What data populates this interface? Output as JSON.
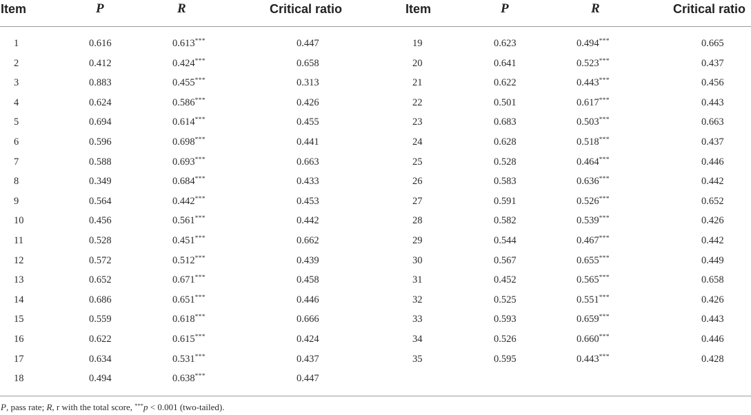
{
  "headers": {
    "left": {
      "item": "Item",
      "p": "P",
      "r": "R",
      "cr": "Critical ratio"
    },
    "right": {
      "item": "Item",
      "p": "P",
      "r": "R",
      "cr": "Critical ratio"
    }
  },
  "significance_marker": "***",
  "rows_left": [
    {
      "item": "1",
      "p": "0.616",
      "r": "0.613",
      "cr": "0.447"
    },
    {
      "item": "2",
      "p": "0.412",
      "r": "0.424",
      "cr": "0.658"
    },
    {
      "item": "3",
      "p": "0.883",
      "r": "0.455",
      "cr": "0.313"
    },
    {
      "item": "4",
      "p": "0.624",
      "r": "0.586",
      "cr": "0.426"
    },
    {
      "item": "5",
      "p": "0.694",
      "r": "0.614",
      "cr": "0.455"
    },
    {
      "item": "6",
      "p": "0.596",
      "r": "0.698",
      "cr": "0.441"
    },
    {
      "item": "7",
      "p": "0.588",
      "r": "0.693",
      "cr": "0.663"
    },
    {
      "item": "8",
      "p": "0.349",
      "r": "0.684",
      "cr": "0.433"
    },
    {
      "item": "9",
      "p": "0.564",
      "r": "0.442",
      "cr": "0.453"
    },
    {
      "item": "10",
      "p": "0.456",
      "r": "0.561",
      "cr": "0.442"
    },
    {
      "item": "11",
      "p": "0.528",
      "r": "0.451",
      "cr": "0.662"
    },
    {
      "item": "12",
      "p": "0.572",
      "r": "0.512",
      "cr": "0.439"
    },
    {
      "item": "13",
      "p": "0.652",
      "r": "0.671",
      "cr": "0.458"
    },
    {
      "item": "14",
      "p": "0.686",
      "r": "0.651",
      "cr": "0.446"
    },
    {
      "item": "15",
      "p": "0.559",
      "r": "0.618",
      "cr": "0.666"
    },
    {
      "item": "16",
      "p": "0.622",
      "r": "0.615",
      "cr": "0.424"
    },
    {
      "item": "17",
      "p": "0.634",
      "r": "0.531",
      "cr": "0.437"
    },
    {
      "item": "18",
      "p": "0.494",
      "r": "0.638",
      "cr": "0.447"
    }
  ],
  "rows_right": [
    {
      "item": "19",
      "p": "0.623",
      "r": "0.494",
      "cr": "0.665"
    },
    {
      "item": "20",
      "p": "0.641",
      "r": "0.523",
      "cr": "0.437"
    },
    {
      "item": "21",
      "p": "0.622",
      "r": "0.443",
      "cr": "0.456"
    },
    {
      "item": "22",
      "p": "0.501",
      "r": "0.617",
      "cr": "0.443"
    },
    {
      "item": "23",
      "p": "0.683",
      "r": "0.503",
      "cr": "0.663"
    },
    {
      "item": "24",
      "p": "0.628",
      "r": "0.518",
      "cr": "0.437"
    },
    {
      "item": "25",
      "p": "0.528",
      "r": "0.464",
      "cr": "0.446"
    },
    {
      "item": "26",
      "p": "0.583",
      "r": "0.636",
      "cr": "0.442"
    },
    {
      "item": "27",
      "p": "0.591",
      "r": "0.526",
      "cr": "0.652"
    },
    {
      "item": "28",
      "p": "0.582",
      "r": "0.539",
      "cr": "0.426"
    },
    {
      "item": "29",
      "p": "0.544",
      "r": "0.467",
      "cr": "0.442"
    },
    {
      "item": "30",
      "p": "0.567",
      "r": "0.655",
      "cr": "0.449"
    },
    {
      "item": "31",
      "p": "0.452",
      "r": "0.565",
      "cr": "0.658"
    },
    {
      "item": "32",
      "p": "0.525",
      "r": "0.551",
      "cr": "0.426"
    },
    {
      "item": "33",
      "p": "0.593",
      "r": "0.659",
      "cr": "0.443"
    },
    {
      "item": "34",
      "p": "0.526",
      "r": "0.660",
      "cr": "0.446"
    },
    {
      "item": "35",
      "p": "0.595",
      "r": "0.443",
      "cr": "0.428"
    }
  ],
  "footnote": {
    "p_symbol": "P",
    "p_text": ", pass rate; ",
    "r_symbol": "R",
    "r_text": ", r with the total score, ",
    "stars": "***",
    "p_value_symbol": "p",
    "tail": " < 0.001 (two-tailed)."
  },
  "colors": {
    "text": "#2b2b2b",
    "header": "#222222",
    "rule": "#9a9a9a",
    "background": "#ffffff"
  }
}
